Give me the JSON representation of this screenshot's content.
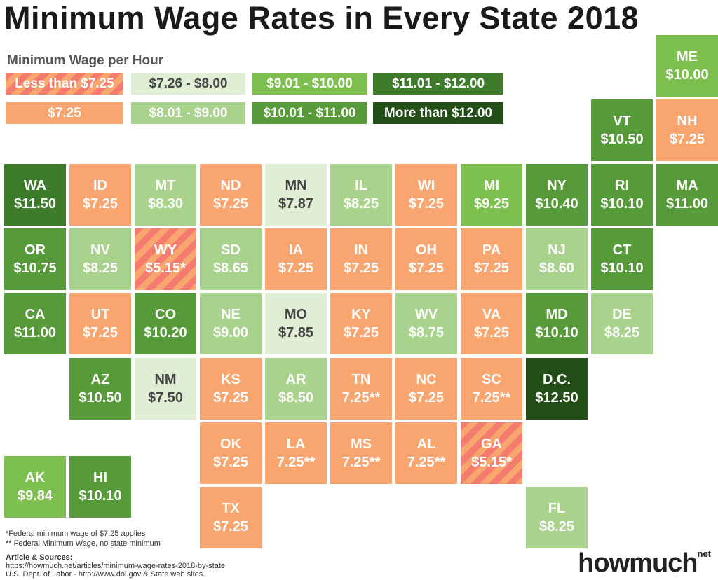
{
  "title": "Minimum Wage Rates in Every State 2018",
  "legend": {
    "title": "Minimum Wage per Hour",
    "items": [
      {
        "label": "Less than $7.25",
        "color": "#f47b6d",
        "pattern": "striped"
      },
      {
        "label": "$7.26 - $8.00",
        "color": "#e0eed6"
      },
      {
        "label": "$9.01 - $10.00",
        "color": "#7dbf4e"
      },
      {
        "label": "$11.01 - $12.00",
        "color": "#3e7c2c"
      },
      {
        "label": "$7.25",
        "color": "#f9a56f"
      },
      {
        "label": "$8.01 - $9.00",
        "color": "#a9d38c"
      },
      {
        "label": "$10.01 - $11.00",
        "color": "#569a39"
      },
      {
        "label": "More than $12.00",
        "color": "#234e17"
      }
    ]
  },
  "tiles": [
    {
      "abbr": "ME",
      "value": "$10.00",
      "color": "#7dbf4e"
    },
    {
      "abbr": "VT",
      "value": "$10.50",
      "color": "#569a39"
    },
    {
      "abbr": "NH",
      "value": "$7.25",
      "color": "#f9a56f"
    },
    {
      "abbr": "WA",
      "value": "$11.50",
      "color": "#3e7c2c"
    },
    {
      "abbr": "ID",
      "value": "$7.25",
      "color": "#f9a56f"
    },
    {
      "abbr": "MT",
      "value": "$8.30",
      "color": "#a9d38c"
    },
    {
      "abbr": "ND",
      "value": "$7.25",
      "color": "#f9a56f"
    },
    {
      "abbr": "MN",
      "value": "$7.87",
      "color": "#e0eed6"
    },
    {
      "abbr": "IL",
      "value": "$8.25",
      "color": "#a9d38c"
    },
    {
      "abbr": "WI",
      "value": "$7.25",
      "color": "#f9a56f"
    },
    {
      "abbr": "MI",
      "value": "$9.25",
      "color": "#7dbf4e"
    },
    {
      "abbr": "NY",
      "value": "$10.40",
      "color": "#569a39"
    },
    {
      "abbr": "RI",
      "value": "$10.10",
      "color": "#569a39"
    },
    {
      "abbr": "MA",
      "value": "$11.00",
      "color": "#569a39"
    },
    {
      "abbr": "OR",
      "value": "$10.75",
      "color": "#569a39"
    },
    {
      "abbr": "NV",
      "value": "$8.25",
      "color": "#a9d38c"
    },
    {
      "abbr": "WY",
      "value": "$5.15*",
      "color": "#f47b6d"
    },
    {
      "abbr": "SD",
      "value": "$8.65",
      "color": "#a9d38c"
    },
    {
      "abbr": "IA",
      "value": "$7.25",
      "color": "#f9a56f"
    },
    {
      "abbr": "IN",
      "value": "$7.25",
      "color": "#f9a56f"
    },
    {
      "abbr": "OH",
      "value": "$7.25",
      "color": "#f9a56f"
    },
    {
      "abbr": "PA",
      "value": "$7.25",
      "color": "#f9a56f"
    },
    {
      "abbr": "NJ",
      "value": "$8.60",
      "color": "#a9d38c"
    },
    {
      "abbr": "CT",
      "value": "$10.10",
      "color": "#569a39"
    },
    {
      "abbr": "CA",
      "value": "$11.00",
      "color": "#569a39"
    },
    {
      "abbr": "UT",
      "value": "$7.25",
      "color": "#f9a56f"
    },
    {
      "abbr": "CO",
      "value": "$10.20",
      "color": "#569a39"
    },
    {
      "abbr": "NE",
      "value": "$9.00",
      "color": "#a9d38c"
    },
    {
      "abbr": "MO",
      "value": "$7.85",
      "color": "#e0eed6"
    },
    {
      "abbr": "KY",
      "value": "$7.25",
      "color": "#f9a56f"
    },
    {
      "abbr": "WV",
      "value": "$8.75",
      "color": "#a9d38c"
    },
    {
      "abbr": "VA",
      "value": "$7.25",
      "color": "#f9a56f"
    },
    {
      "abbr": "MD",
      "value": "$10.10",
      "color": "#569a39"
    },
    {
      "abbr": "DE",
      "value": "$8.25",
      "color": "#a9d38c"
    },
    {
      "abbr": "AZ",
      "value": "$10.50",
      "color": "#569a39"
    },
    {
      "abbr": "NM",
      "value": "$7.50",
      "color": "#e0eed6"
    },
    {
      "abbr": "KS",
      "value": "$7.25",
      "color": "#f9a56f"
    },
    {
      "abbr": "AR",
      "value": "$8.50",
      "color": "#a9d38c"
    },
    {
      "abbr": "TN",
      "value": "7.25**",
      "color": "#f9a56f"
    },
    {
      "abbr": "NC",
      "value": "$7.25",
      "color": "#f9a56f"
    },
    {
      "abbr": "SC",
      "value": "7.25**",
      "color": "#f9a56f"
    },
    {
      "abbr": "D.C.",
      "value": "$12.50",
      "color": "#234e17"
    },
    {
      "abbr": "OK",
      "value": "$7.25",
      "color": "#f9a56f"
    },
    {
      "abbr": "LA",
      "value": "7.25**",
      "color": "#f9a56f"
    },
    {
      "abbr": "MS",
      "value": "7.25**",
      "color": "#f9a56f"
    },
    {
      "abbr": "AL",
      "value": "7.25**",
      "color": "#f9a56f"
    },
    {
      "abbr": "GA",
      "value": "$5.15*",
      "color": "#f47b6d"
    },
    {
      "abbr": "AK",
      "value": "$9.84",
      "color": "#7dbf4e"
    },
    {
      "abbr": "HI",
      "value": "$10.10",
      "color": "#569a39"
    },
    {
      "abbr": "TX",
      "value": "$7.25",
      "color": "#f9a56f"
    },
    {
      "abbr": "FL",
      "value": "$8.25",
      "color": "#a9d38c"
    }
  ],
  "footnotes": [
    "*Federal minimum wage of $7.25 applies",
    "** Federal Minimum Wage, no state minimum"
  ],
  "sources": {
    "title": "Article & Sources:",
    "lines": [
      "https://howmuch.net/articles/minimum-wage-rates-2018-by-state",
      "U.S. Dept. of Labor -  http://www.dol.gov & State web sites."
    ]
  },
  "logo": {
    "name": "howmuch",
    "suffix": "net"
  }
}
